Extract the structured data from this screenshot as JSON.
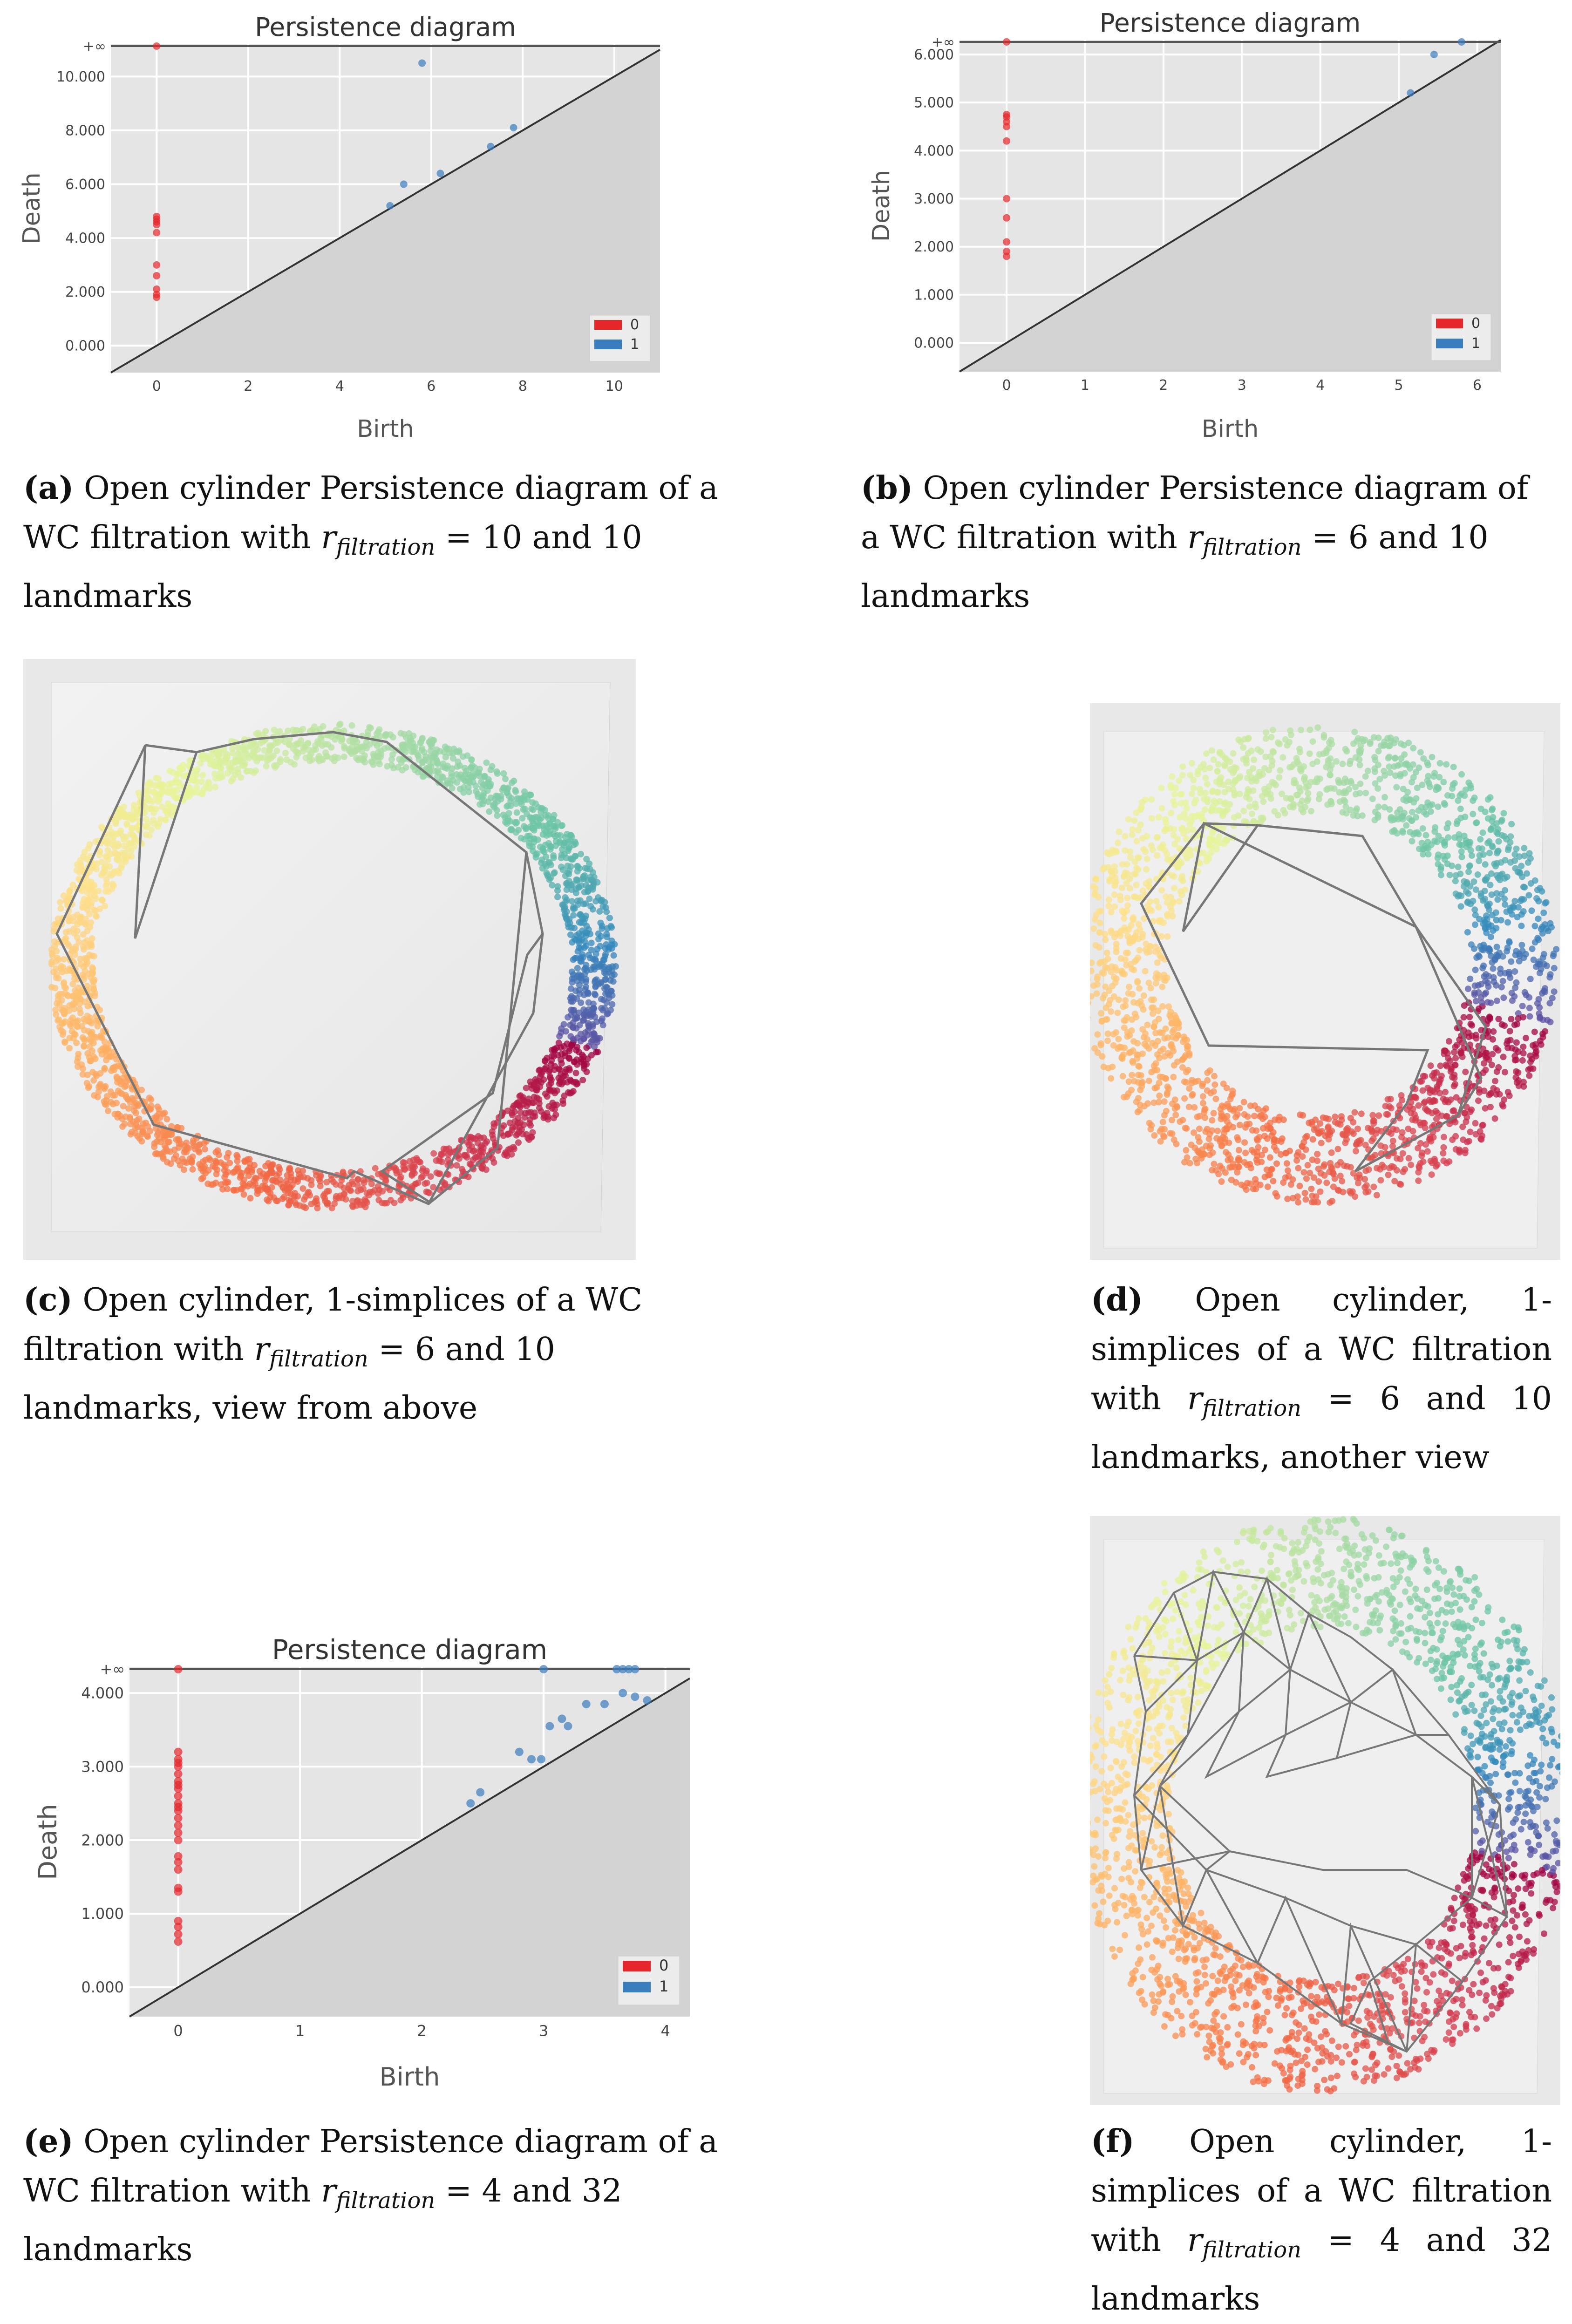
{
  "plot_title": "Persistence diagram",
  "xlabel": "Birth",
  "ylabel": "Death",
  "inf_label": "+∞",
  "legend": [
    "0",
    "1"
  ],
  "colors": {
    "dim0": "#e5262b",
    "dim1": "#3a7dbf",
    "bg": "#e5e5e5",
    "diag_fill": "#d3d3d3"
  },
  "captions": {
    "a": {
      "label": "(a)",
      "text1": "Open cylinder Persistence diagram of a WC filtration with ",
      "r": "r",
      "sub": "filtration",
      "text2": " = 10 and 10 landmarks"
    },
    "b": {
      "label": "(b)",
      "text1": "Open cylinder Persistence diagram of a WC filtration with ",
      "r": "r",
      "sub": "filtration",
      "text2": " = 6 and 10 landmarks"
    },
    "c": {
      "label": "(c)",
      "text1": "Open cylinder, 1-simplices of a WC filtration with ",
      "r": "r",
      "sub": "filtration",
      "text2": " = 6 and 10 landmarks, view from above"
    },
    "d": {
      "label": "(d)",
      "text1": "Open cylinder, 1-simplices of a WC filtration with ",
      "r": "r",
      "sub": "filtration",
      "text2": " = 6 and 10 landmarks, another view"
    },
    "e": {
      "label": "(e)",
      "text1": "Open cylinder Persistence diagram of a WC filtration with ",
      "r": "r",
      "sub": "filtration",
      "text2": " = 4 and 32 landmarks"
    },
    "f": {
      "label": "(f)",
      "text1": "Open cylinder, 1-simplices of a WC filtration with ",
      "r": "r",
      "sub": "filtration",
      "text2": " = 4 and 32 landmarks"
    }
  },
  "chart_data": [
    {
      "id": "a",
      "type": "scatter",
      "title": "Persistence diagram",
      "xlabel": "Birth",
      "ylabel": "Death",
      "xlim": [
        -1,
        11
      ],
      "ylim": [
        -1,
        11.2
      ],
      "inf_y": 11.6,
      "xticks": [
        "0",
        "2",
        "4",
        "6",
        "8",
        "10"
      ],
      "xtick_values": [
        0,
        2,
        4,
        6,
        8,
        10
      ],
      "yticks": [
        "0.000",
        "2.000",
        "4.000",
        "6.000",
        "8.000",
        "10.000"
      ],
      "ytick_values": [
        0,
        2,
        4,
        6,
        8,
        10
      ],
      "series": [
        {
          "name": "0",
          "points": [
            [
              0,
              1.8
            ],
            [
              0,
              1.9
            ],
            [
              0,
              2.1
            ],
            [
              0,
              2.6
            ],
            [
              0,
              3.0
            ],
            [
              0,
              4.2
            ],
            [
              0,
              4.5
            ],
            [
              0,
              4.6
            ],
            [
              0,
              4.7
            ],
            [
              0,
              4.8
            ],
            [
              0,
              "inf"
            ]
          ]
        },
        {
          "name": "1",
          "points": [
            [
              5.1,
              5.2
            ],
            [
              5.4,
              6.0
            ],
            [
              5.8,
              10.5
            ],
            [
              6.2,
              6.4
            ],
            [
              7.3,
              7.4
            ],
            [
              7.8,
              8.1
            ]
          ]
        }
      ]
    },
    {
      "id": "b",
      "type": "scatter",
      "title": "Persistence diagram",
      "xlabel": "Birth",
      "ylabel": "Death",
      "xlim": [
        -0.6,
        6.3
      ],
      "ylim": [
        -0.6,
        6.3
      ],
      "inf_y": 6.5,
      "xticks": [
        "0",
        "1",
        "2",
        "3",
        "4",
        "5",
        "6"
      ],
      "xtick_values": [
        0,
        1,
        2,
        3,
        4,
        5,
        6
      ],
      "yticks": [
        "0.000",
        "1.000",
        "2.000",
        "3.000",
        "4.000",
        "5.000",
        "6.000"
      ],
      "ytick_values": [
        0,
        1,
        2,
        3,
        4,
        5,
        6
      ],
      "series": [
        {
          "name": "0",
          "points": [
            [
              0,
              1.8
            ],
            [
              0,
              1.9
            ],
            [
              0,
              2.1
            ],
            [
              0,
              2.6
            ],
            [
              0,
              3.0
            ],
            [
              0,
              4.2
            ],
            [
              0,
              4.5
            ],
            [
              0,
              4.6
            ],
            [
              0,
              4.7
            ],
            [
              0,
              4.75
            ],
            [
              0,
              "inf"
            ]
          ]
        },
        {
          "name": "1",
          "points": [
            [
              5.15,
              5.2
            ],
            [
              5.45,
              6.0
            ],
            [
              5.8,
              "inf"
            ]
          ]
        }
      ]
    },
    {
      "id": "e",
      "type": "scatter",
      "title": "Persistence diagram",
      "xlabel": "Birth",
      "ylabel": "Death",
      "xlim": [
        -0.4,
        4.2
      ],
      "ylim": [
        -0.4,
        4.35
      ],
      "inf_y": 4.4,
      "xticks": [
        "0",
        "1",
        "2",
        "3",
        "4"
      ],
      "xtick_values": [
        0,
        1,
        2,
        3,
        4
      ],
      "yticks": [
        "0.000",
        "1.000",
        "2.000",
        "3.000",
        "4.000"
      ],
      "ytick_values": [
        0,
        1,
        2,
        3,
        4
      ],
      "series": [
        {
          "name": "0",
          "points": [
            [
              0,
              0.62
            ],
            [
              0,
              0.72
            ],
            [
              0,
              0.82
            ],
            [
              0,
              0.9
            ],
            [
              0,
              1.3
            ],
            [
              0,
              1.35
            ],
            [
              0,
              1.6
            ],
            [
              0,
              1.7
            ],
            [
              0,
              1.78
            ],
            [
              0,
              2.0
            ],
            [
              0,
              2.1
            ],
            [
              0,
              2.2
            ],
            [
              0,
              2.3
            ],
            [
              0,
              2.4
            ],
            [
              0,
              2.45
            ],
            [
              0,
              2.5
            ],
            [
              0,
              2.6
            ],
            [
              0,
              2.7
            ],
            [
              0,
              2.75
            ],
            [
              0,
              2.8
            ],
            [
              0,
              2.9
            ],
            [
              0,
              3.0
            ],
            [
              0,
              3.05
            ],
            [
              0,
              3.1
            ],
            [
              0,
              3.2
            ],
            [
              0,
              "inf"
            ]
          ]
        },
        {
          "name": "1",
          "points": [
            [
              2.4,
              2.5
            ],
            [
              2.48,
              2.65
            ],
            [
              2.8,
              3.2
            ],
            [
              2.9,
              3.1
            ],
            [
              2.98,
              3.1
            ],
            [
              3.05,
              3.55
            ],
            [
              3.15,
              3.65
            ],
            [
              3.2,
              3.55
            ],
            [
              3.35,
              3.85
            ],
            [
              3.5,
              3.85
            ],
            [
              3.65,
              4.0
            ],
            [
              3.75,
              3.95
            ],
            [
              3.85,
              3.9
            ],
            [
              3.0,
              "inf"
            ],
            [
              3.6,
              "inf"
            ],
            [
              3.65,
              "inf"
            ],
            [
              3.7,
              "inf"
            ],
            [
              3.75,
              "inf"
            ]
          ]
        }
      ]
    }
  ]
}
